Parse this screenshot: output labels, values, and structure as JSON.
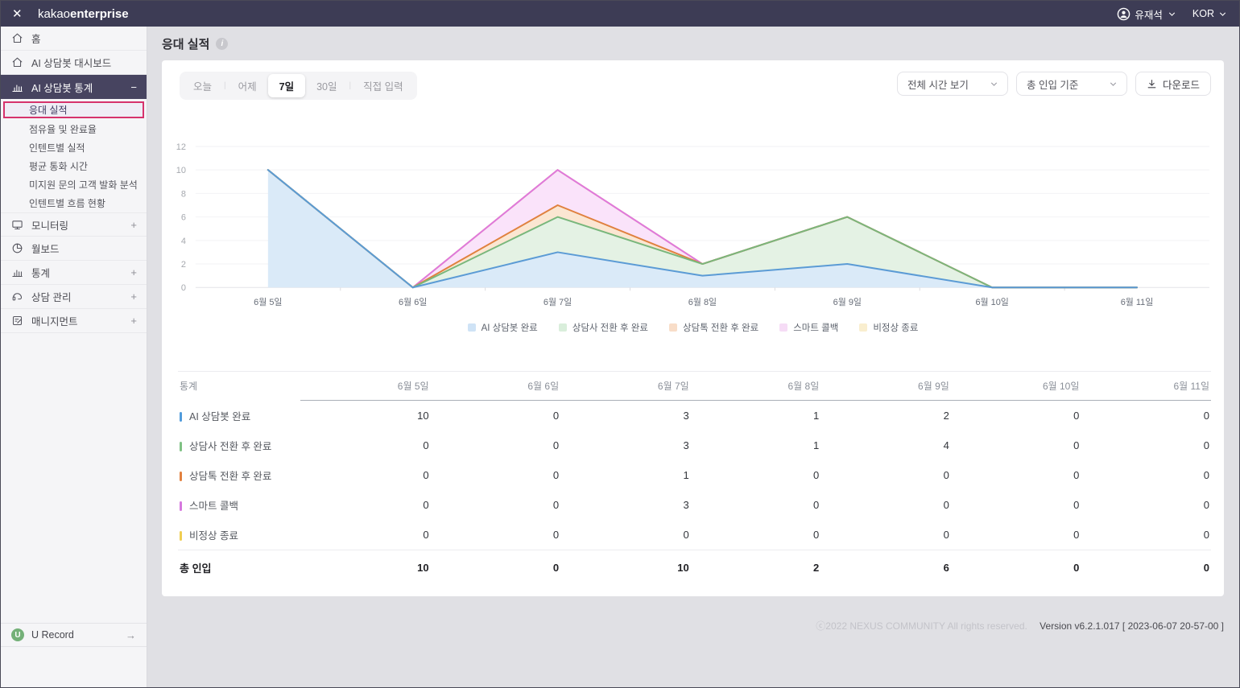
{
  "colors": {
    "accent_highlight": "#d6336c",
    "topbar_bg": "#3d3c55",
    "urecord_green": "#74b078"
  },
  "topbar": {
    "close_label": "✕",
    "logo_regular": "kakao",
    "logo_bold": "enterprise",
    "user": "유재석",
    "lang": "KOR"
  },
  "sidebar": {
    "menu": [
      {
        "type": "item",
        "icon": "home",
        "label": "홈"
      },
      {
        "type": "item",
        "icon": "dashboard",
        "label": "AI 상담봇 대시보드"
      },
      {
        "type": "group-open",
        "icon": "stats",
        "label": "AI 상담봇 통계",
        "toggle": "−"
      },
      {
        "type": "subitem",
        "label": "응대 실적",
        "selected": true
      },
      {
        "type": "subitem",
        "label": "점유율 및 완료율"
      },
      {
        "type": "subitem",
        "label": "인텐트별 실적"
      },
      {
        "type": "subitem",
        "label": "평균 통화 시간"
      },
      {
        "type": "subitem",
        "label": "미지원 문의 고객 발화 분석"
      },
      {
        "type": "subitem",
        "label": "인텐트별 흐름 현황"
      },
      {
        "type": "group",
        "icon": "monitor",
        "label": "모니터링",
        "toggle": "+"
      },
      {
        "type": "item",
        "icon": "pie",
        "label": "월보드"
      },
      {
        "type": "group",
        "icon": "stats",
        "label": "통계",
        "toggle": "+"
      },
      {
        "type": "group",
        "icon": "headset",
        "label": "상담 관리",
        "toggle": "+"
      },
      {
        "type": "group",
        "icon": "management",
        "label": "매니지먼트",
        "toggle": "+"
      }
    ],
    "bottom": {
      "label": "U Record",
      "badge": "U",
      "arrow": "→"
    }
  },
  "header": {
    "title": "응대 실적",
    "info_icon": "i"
  },
  "toolbar": {
    "ranges": [
      "오늘",
      "어제",
      "7일",
      "30일",
      "직접 입력"
    ],
    "selected_index": 2,
    "view_dropdown": "전체 시간 보기",
    "basis_dropdown": "총 인입 기준",
    "download_label": "다운로드"
  },
  "chart_data": {
    "type": "area",
    "stacked": true,
    "title": "",
    "xlabel": "",
    "ylabel": "",
    "grid": true,
    "legend_position": "bottom",
    "x": [
      "6월 5일",
      "6월 6일",
      "6월 7일",
      "6월 8일",
      "6월 9일",
      "6월 10일",
      "6월 11일"
    ],
    "ylim": [
      0,
      12
    ],
    "yticks": [
      0,
      2,
      4,
      6,
      8,
      10,
      12
    ],
    "series": [
      {
        "name": "AI 상담봇 완료",
        "values": [
          10,
          0,
          3,
          1,
          2,
          0,
          0
        ],
        "color": "#5b9bd5",
        "fill": "#daeaf8",
        "swatch": "#cfe3f6"
      },
      {
        "name": "상담사 전환 후 완료",
        "values": [
          0,
          0,
          3,
          1,
          4,
          0,
          0
        ],
        "color": "#79b77c",
        "fill": "#e4f2e4",
        "swatch": "#d9eedb"
      },
      {
        "name": "상담톡 전환 후 완료",
        "values": [
          0,
          0,
          1,
          0,
          0,
          0,
          0
        ],
        "color": "#e0813f",
        "fill": "#fbe6d2",
        "swatch": "#f8ddc8"
      },
      {
        "name": "스마트 콜백",
        "values": [
          0,
          0,
          3,
          0,
          0,
          0,
          0
        ],
        "color": "#df77df",
        "fill": "#fae3fa",
        "swatch": "#f6dcf6"
      },
      {
        "name": "비정상 종료",
        "values": [
          0,
          0,
          0,
          0,
          0,
          0,
          0
        ],
        "color": "#e8c84d",
        "fill": "#fbf2d4",
        "swatch": "#f9eecf"
      }
    ]
  },
  "table": {
    "header_label": "통계",
    "columns": [
      "6월 5일",
      "6월 6일",
      "6월 7일",
      "6월 8일",
      "6월 9일",
      "6월 10일",
      "6월 11일"
    ],
    "rows": [
      {
        "label": "AI 상담봇 완료",
        "chip_color": "#509bdb",
        "values": [
          10,
          0,
          3,
          1,
          2,
          0,
          0
        ]
      },
      {
        "label": "상담사 전환 후 완료",
        "chip_color": "#7fc184",
        "values": [
          0,
          0,
          3,
          1,
          4,
          0,
          0
        ]
      },
      {
        "label": "상담톡 전환 후 완료",
        "chip_color": "#e2813f",
        "values": [
          0,
          0,
          1,
          0,
          0,
          0,
          0
        ]
      },
      {
        "label": "스마트 콜백",
        "chip_color": "#d678de",
        "values": [
          0,
          0,
          3,
          0,
          0,
          0,
          0
        ]
      },
      {
        "label": "비정상 종료",
        "chip_color": "#f0ce52",
        "values": [
          0,
          0,
          0,
          0,
          0,
          0,
          0
        ]
      }
    ],
    "total": {
      "label": "총 인입",
      "values": [
        10,
        0,
        10,
        2,
        6,
        0,
        0
      ]
    }
  },
  "footer": {
    "copyright": "ⓒ2022 NEXUS COMMUNITY All rights reserved.",
    "version": "Version v6.2.1.017 [ 2023-06-07 20-57-00 ]"
  }
}
